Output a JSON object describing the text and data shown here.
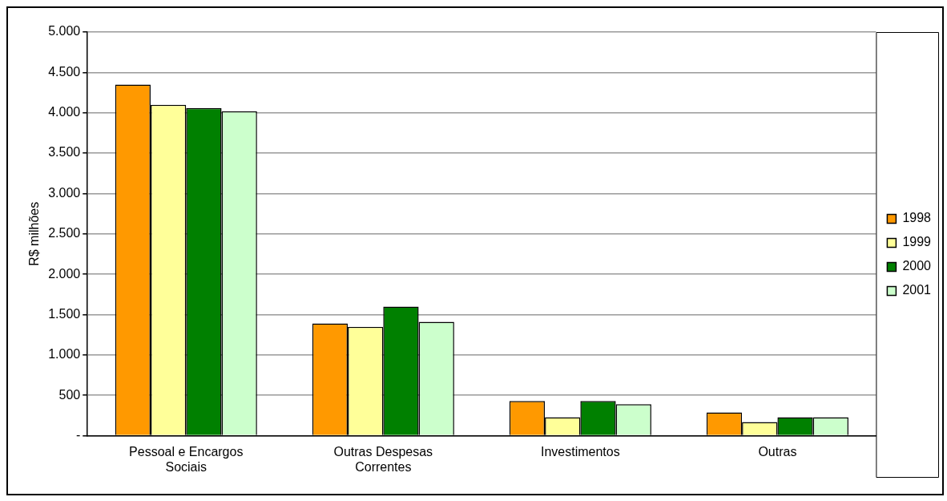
{
  "chart_data": {
    "type": "bar",
    "ylabel": "R$ milhões",
    "categories": [
      "Pessoal e Encargos Sociais",
      "Outras Despesas Correntes",
      "Investimentos",
      "Outras"
    ],
    "series": [
      {
        "name": "1998",
        "color": "#ff9900",
        "values": [
          4350,
          1390,
          430,
          290
        ]
      },
      {
        "name": "1999",
        "color": "#ffff99",
        "values": [
          4100,
          1350,
          230,
          170
        ]
      },
      {
        "name": "2000",
        "color": "#008000",
        "values": [
          4060,
          1600,
          430,
          230
        ]
      },
      {
        "name": "2001",
        "color": "#ccffcc",
        "values": [
          4020,
          1410,
          390,
          230
        ]
      }
    ],
    "ylim": [
      0,
      5000
    ],
    "yticks": [
      {
        "value": 0,
        "label": "-"
      },
      {
        "value": 500,
        "label": "500"
      },
      {
        "value": 1000,
        "label": "1.000"
      },
      {
        "value": 1500,
        "label": "1.500"
      },
      {
        "value": 2000,
        "label": "2.000"
      },
      {
        "value": 2500,
        "label": "2.500"
      },
      {
        "value": 3000,
        "label": "3.000"
      },
      {
        "value": 3500,
        "label": "3.500"
      },
      {
        "value": 4000,
        "label": "4.000"
      },
      {
        "value": 4500,
        "label": "4.500"
      },
      {
        "value": 5000,
        "label": "5.000"
      }
    ],
    "grid": "y",
    "legend": "right"
  }
}
